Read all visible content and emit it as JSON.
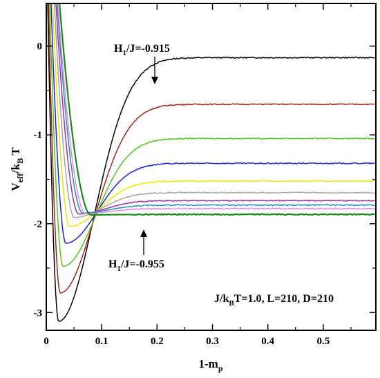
{
  "chart_data": {
    "type": "line",
    "title": "",
    "xlabel": {
      "main": "1-m",
      "sub": "p"
    },
    "ylabel": {
      "main": "V",
      "sub1": "eff",
      "mid": "/k",
      "sub2": "B",
      "tail": " T"
    },
    "xlim": [
      0,
      0.595
    ],
    "ylim": [
      -3.2,
      0.48
    ],
    "xticks": [
      0,
      0.1,
      0.2,
      0.3,
      0.4,
      0.5
    ],
    "xtick_labels": [
      "0",
      "0.1",
      "0.2",
      "0.3",
      "0.4",
      "0.5"
    ],
    "yticks": [
      0,
      -1,
      -2,
      -3
    ],
    "ytick_labels": [
      "0",
      "-1",
      "-2",
      "-3"
    ],
    "grid": false,
    "annotations": [
      {
        "id": "top",
        "prefix": "H",
        "sub": "1",
        "suffix": "/J=-0.915",
        "arrow_to": [
          0.191,
          -0.13
        ]
      },
      {
        "id": "bottom",
        "prefix": "H",
        "sub": "1",
        "suffix": "/J=-0.955",
        "arrow_to": [
          0.172,
          -1.9
        ]
      }
    ],
    "params_label": {
      "a": "J/k",
      "sub": "B",
      "b": "T=1.0, L=210, D=210"
    },
    "series": [
      {
        "color": "#000000",
        "plateau": -0.13,
        "min_x": 0.022,
        "min_y": -3.1
      },
      {
        "color": "#a0261b",
        "plateau": -0.655,
        "min_x": 0.025,
        "min_y": -2.78
      },
      {
        "color": "#52c51b",
        "plateau": -1.04,
        "min_x": 0.03,
        "min_y": -2.48
      },
      {
        "color": "#1c22d4",
        "plateau": -1.32,
        "min_x": 0.035,
        "min_y": -2.22
      },
      {
        "color": "#e8e800",
        "plateau": -1.52,
        "min_x": 0.042,
        "min_y": -2.03
      },
      {
        "color": "#a4a4a4",
        "plateau": -1.65,
        "min_x": 0.05,
        "min_y": -1.93
      },
      {
        "color": "#9b2ea0",
        "plateau": -1.74,
        "min_x": 0.058,
        "min_y": -1.89
      },
      {
        "color": "#1d8fb0",
        "plateau": -1.79,
        "min_x": 0.065,
        "min_y": -1.88
      },
      {
        "color": "#ee82ee",
        "plateau": -1.83,
        "min_x": 0.07,
        "min_y": -1.885
      },
      {
        "color": "#1a8a1a",
        "plateau": -1.895,
        "min_x": 0.08,
        "min_y": -1.9
      }
    ]
  }
}
